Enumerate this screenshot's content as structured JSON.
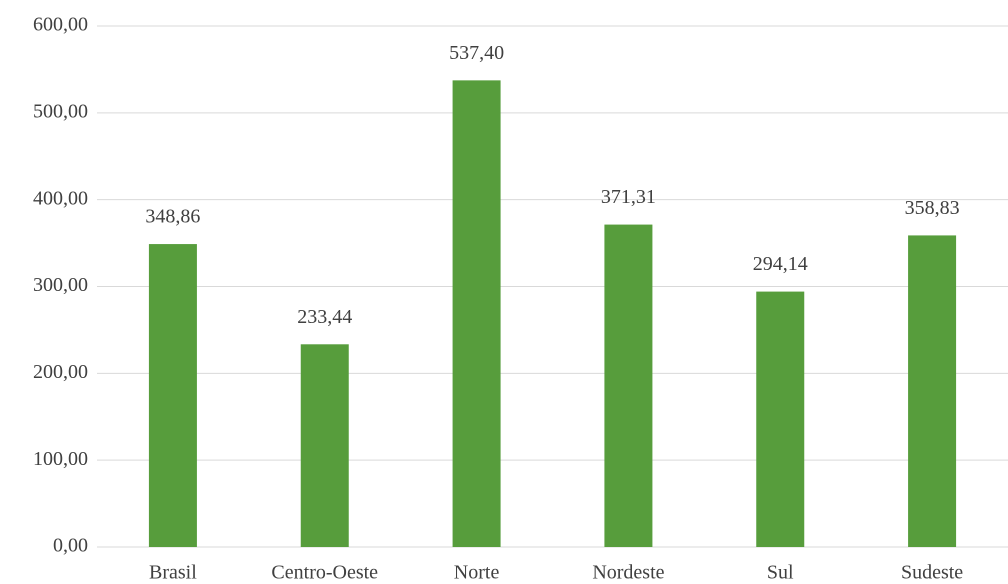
{
  "chart_data": {
    "type": "bar",
    "categories": [
      "Brasil",
      "Centro-Oeste",
      "Norte",
      "Nordeste",
      "Sul",
      "Sudeste"
    ],
    "values": [
      348.86,
      233.44,
      537.4,
      371.31,
      294.14,
      358.83
    ],
    "value_labels": [
      "348,86",
      "233,44",
      "537,40",
      "371,31",
      "294,14",
      "358,83"
    ],
    "color": "#579d3c",
    "ylim": [
      0,
      600
    ],
    "yticks": [
      {
        "value": 0,
        "label": "0,00"
      },
      {
        "value": 100,
        "label": "100,00"
      },
      {
        "value": 200,
        "label": "200,00"
      },
      {
        "value": 300,
        "label": "300,00"
      },
      {
        "value": 400,
        "label": "400,00"
      },
      {
        "value": 500,
        "label": "500,00"
      },
      {
        "value": 600,
        "label": "600,00"
      }
    ],
    "grid": true
  }
}
